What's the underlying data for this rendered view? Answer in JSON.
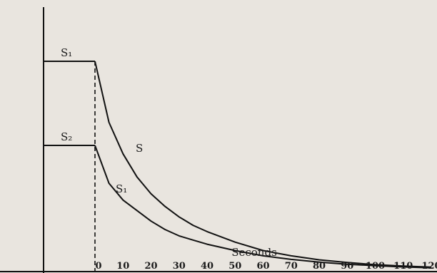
{
  "chart_data": {
    "type": "line",
    "xlabel": "Seconds",
    "x_ticks": [
      0,
      10,
      20,
      30,
      40,
      50,
      60,
      70,
      80,
      90,
      100,
      110,
      120
    ],
    "xlim": [
      0,
      120
    ],
    "ylim": [
      0,
      1.0
    ],
    "grid": false,
    "series": [
      {
        "name": "S",
        "plateau_label": "S₁",
        "x": [
          0,
          5,
          10,
          15,
          20,
          25,
          30,
          35,
          40,
          50,
          60,
          70,
          80,
          90,
          100,
          110,
          120
        ],
        "y": [
          1.0,
          0.71,
          0.56,
          0.45,
          0.37,
          0.31,
          0.26,
          0.22,
          0.19,
          0.14,
          0.1,
          0.075,
          0.056,
          0.043,
          0.033,
          0.026,
          0.021
        ]
      },
      {
        "name": "S₁",
        "plateau_label": "S₂",
        "x": [
          0,
          5,
          10,
          15,
          20,
          25,
          30,
          35,
          40,
          50,
          60,
          70,
          80,
          90,
          100,
          110,
          120
        ],
        "y": [
          0.6,
          0.42,
          0.34,
          0.29,
          0.24,
          0.2,
          0.17,
          0.15,
          0.13,
          0.1,
          0.075,
          0.058,
          0.045,
          0.035,
          0.028,
          0.022,
          0.018
        ]
      }
    ]
  }
}
